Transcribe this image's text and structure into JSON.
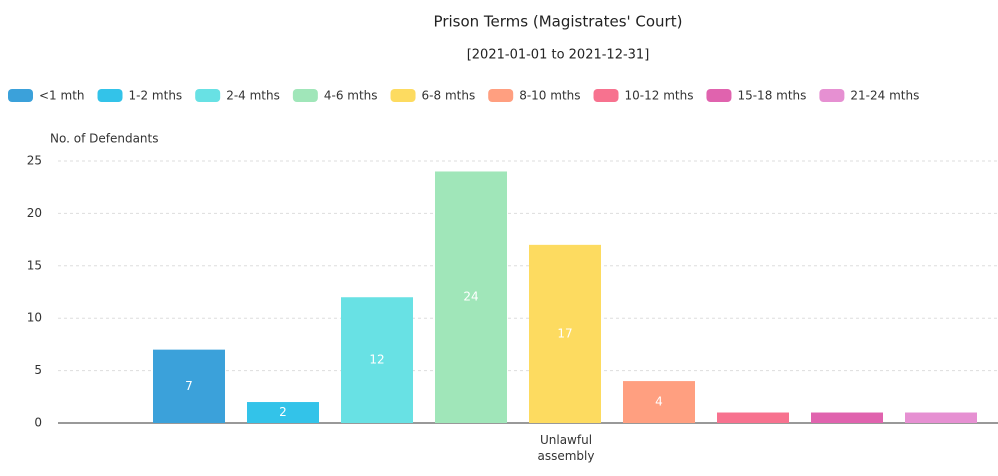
{
  "chart_data": {
    "type": "bar",
    "title": "Prison Terms (Magistrates' Court)",
    "subtitle": "[2021-01-01 to 2021-12-31]",
    "y_label": "No. of Defendants",
    "categories": [
      "Unlawful assembly"
    ],
    "series": [
      {
        "name": "<1 mth",
        "color": "#3ba1da",
        "values": [
          7
        ]
      },
      {
        "name": "1-2 mths",
        "color": "#33c3e9",
        "values": [
          2
        ]
      },
      {
        "name": "2-4 mths",
        "color": "#68e1e4",
        "values": [
          12
        ]
      },
      {
        "name": "4-6 mths",
        "color": "#a0e6b9",
        "values": [
          24
        ]
      },
      {
        "name": "6-8 mths",
        "color": "#fddb60",
        "values": [
          17
        ]
      },
      {
        "name": "8-10 mths",
        "color": "#ff9f80",
        "values": [
          4
        ]
      },
      {
        "name": "10-12 mths",
        "color": "#f7728f",
        "values": [
          1
        ]
      },
      {
        "name": "15-18 mths",
        "color": "#e063ae",
        "values": [
          1
        ]
      },
      {
        "name": "21-24 mths",
        "color": "#e690d2",
        "values": [
          1
        ]
      }
    ],
    "ylim": [
      0,
      25
    ],
    "yticks": [
      0,
      5,
      10,
      15,
      20,
      25
    ],
    "grid": true
  }
}
